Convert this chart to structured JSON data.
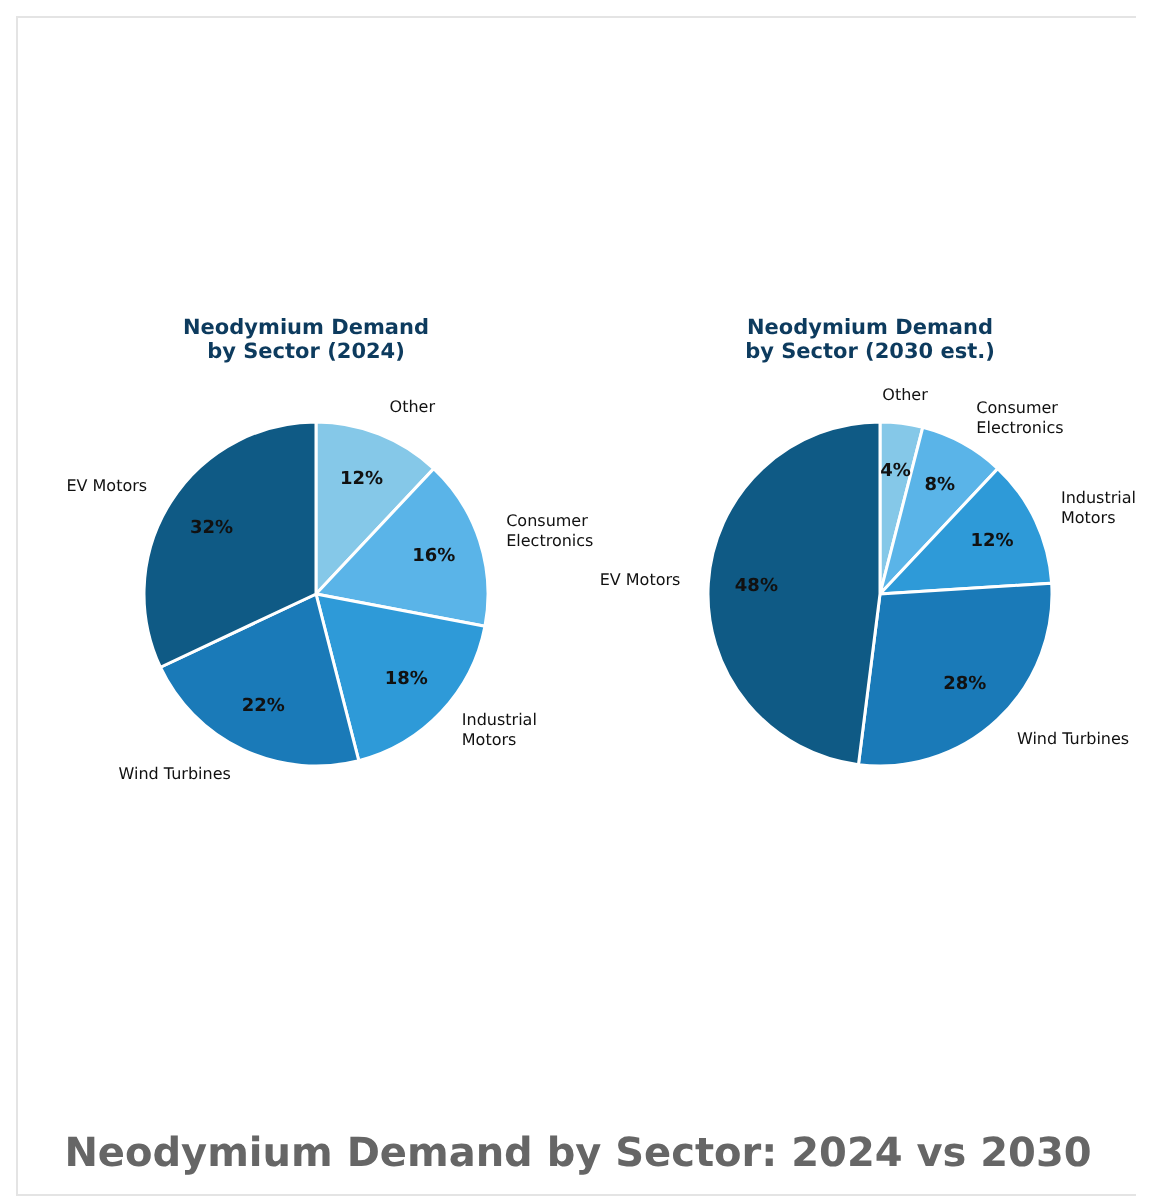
{
  "chart_data": [
    {
      "type": "pie",
      "title": "Neodymium Demand\nby Sector (2024)",
      "categories": [
        "Other",
        "Consumer Electronics",
        "Industrial Motors",
        "Wind Turbines",
        "EV Motors"
      ],
      "values": [
        12,
        16,
        18,
        22,
        32
      ],
      "value_labels": [
        "12%",
        "16%",
        "18%",
        "22%",
        "32%"
      ],
      "colors": [
        "#85c8e8",
        "#5ab4e8",
        "#2e9ad8",
        "#1a7ab8",
        "#0f5a85"
      ]
    },
    {
      "type": "pie",
      "title": "Neodymium Demand\nby Sector (2030 est.)",
      "categories": [
        "Other",
        "Consumer Electronics",
        "Industrial Motors",
        "Wind Turbines",
        "EV Motors"
      ],
      "values": [
        4,
        8,
        12,
        28,
        48
      ],
      "value_labels": [
        "4%",
        "8%",
        "12%",
        "28%",
        "48%"
      ],
      "colors": [
        "#85c8e8",
        "#5ab4e8",
        "#2e9ad8",
        "#1a7ab8",
        "#0f5a85"
      ]
    },
    {
      "type": "other",
      "title": "Neodymium Demand by Sector: 2024 vs 2030"
    }
  ]
}
